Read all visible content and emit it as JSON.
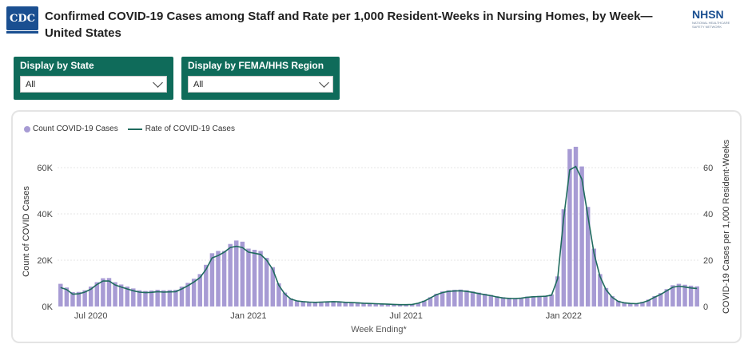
{
  "header": {
    "cdc_logo": "CDC",
    "title": "Confirmed COVID-19 Cases among Staff and Rate per 1,000 Resident-Weeks in Nursing Homes, by Week— United States",
    "nhsn_logo": "NHSN",
    "nhsn_subtitle": "NATIONAL HEALTHCARE SAFETY NETWORK"
  },
  "filters": [
    {
      "label": "Display by State",
      "value": "All"
    },
    {
      "label": "Display by FEMA/HHS Region",
      "value": "All"
    }
  ],
  "legend": {
    "bars": "Count COVID-19 Cases",
    "line": "Rate of COVID-19 Cases"
  },
  "chart_data": {
    "type": "bar",
    "xlabel": "Week Ending*",
    "ylabel_left": "Count of COVID Cases",
    "ylabel_right": "COVID-19 Cases per 1,000 Resident-Weeks",
    "y_left_ticks": [
      "0K",
      "20K",
      "40K",
      "60K"
    ],
    "y_right_ticks": [
      "0",
      "20",
      "40",
      "60"
    ],
    "x_ticks": [
      "Jul 2020",
      "Jan 2021",
      "Jul 2021",
      "Jan 2022"
    ],
    "x_tick_index": [
      5,
      31,
      57,
      83
    ],
    "ylim_left": [
      0,
      70000
    ],
    "ylim_right": [
      0,
      70
    ],
    "series": [
      {
        "name": "Count COVID-19 Cases",
        "values": [
          9800,
          8200,
          6200,
          6300,
          7000,
          8600,
          10500,
          12200,
          12300,
          10500,
          9500,
          8600,
          7800,
          7000,
          6700,
          6900,
          7200,
          7000,
          7100,
          7200,
          8600,
          10200,
          12000,
          14000,
          18000,
          23000,
          24000,
          24000,
          27000,
          28500,
          28000,
          25000,
          24500,
          24000,
          21000,
          17000,
          10000,
          6000,
          3500,
          2600,
          2300,
          2100,
          2000,
          2100,
          2200,
          2300,
          2200,
          2000,
          1900,
          1800,
          1600,
          1500,
          1300,
          1200,
          1100,
          1000,
          900,
          900,
          1000,
          1500,
          2500,
          4000,
          5500,
          6500,
          7000,
          7200,
          7300,
          7000,
          6500,
          6000,
          5500,
          5000,
          4400,
          4000,
          3800,
          3600,
          3800,
          4300,
          4500,
          4600,
          4700,
          5200,
          13000,
          42000,
          68000,
          69000,
          60500,
          43000,
          25000,
          14000,
          8000,
          4500,
          2500,
          1800,
          1500,
          1400,
          2000,
          3000,
          4500,
          5800,
          7500,
          9200,
          9800,
          9400,
          9000,
          8700
        ],
        "note_marker": "bars"
      },
      {
        "name": "Rate of COVID-19 Cases",
        "values": [
          8.2,
          7.3,
          5.3,
          5.5,
          6.2,
          7.5,
          9.5,
          11,
          11,
          9.3,
          8.4,
          7.6,
          6.8,
          6.2,
          6,
          6.1,
          6.4,
          6.2,
          6.3,
          6.4,
          7.6,
          9,
          10.6,
          12.5,
          16,
          21,
          22,
          23.5,
          25.5,
          26,
          25.5,
          23.5,
          23,
          22.5,
          20,
          16,
          9.2,
          5.4,
          3.2,
          2.4,
          2.1,
          1.9,
          1.8,
          1.9,
          2,
          2.1,
          2,
          1.8,
          1.7,
          1.6,
          1.4,
          1.3,
          1.2,
          1.1,
          1,
          0.9,
          0.8,
          0.8,
          0.9,
          1.4,
          2.3,
          3.7,
          5.1,
          6,
          6.5,
          6.7,
          6.8,
          6.5,
          6.1,
          5.6,
          5.1,
          4.7,
          4.1,
          3.7,
          3.5,
          3.4,
          3.6,
          4,
          4.2,
          4.3,
          4.4,
          4.9,
          12,
          38,
          59,
          60.5,
          55,
          39,
          23,
          13,
          7.2,
          4,
          2.2,
          1.6,
          1.3,
          1.2,
          1.7,
          2.6,
          4,
          5.2,
          6.8,
          8.3,
          8.8,
          8.4,
          8,
          7.8
        ]
      }
    ]
  }
}
